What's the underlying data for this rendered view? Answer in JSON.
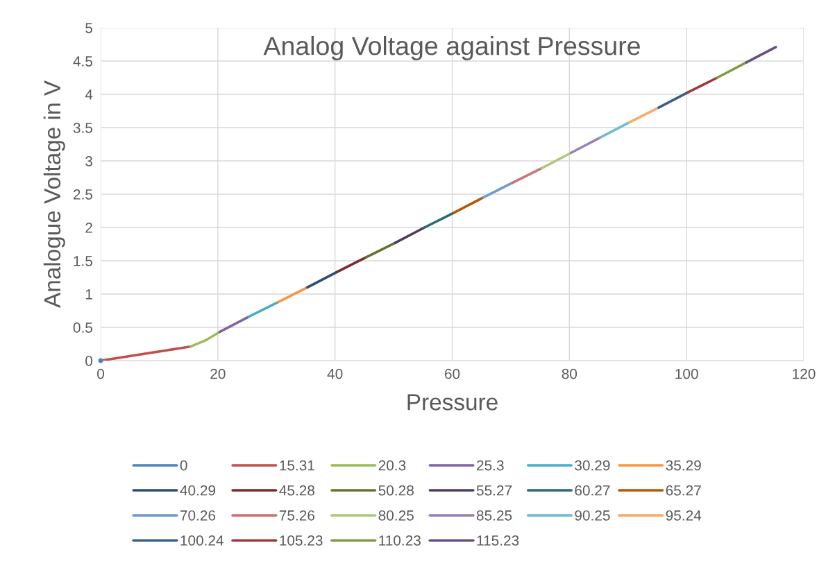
{
  "chart_data": {
    "type": "line",
    "title": "Analog Voltage against Pressure",
    "xlabel": "Pressure",
    "ylabel": "Analogue Voltage in V",
    "xlim": [
      0,
      120
    ],
    "xticks": [
      0,
      20,
      40,
      60,
      80,
      100,
      120
    ],
    "ylim": [
      0,
      5
    ],
    "yticks": [
      0,
      0.5,
      1,
      1.5,
      2,
      2.5,
      3,
      3.5,
      4,
      4.5,
      5
    ],
    "grid": true,
    "legend": "bottom",
    "marker": "none",
    "line_style": "solid",
    "series": [
      {
        "name": "0",
        "color": "#4f81bd",
        "x": [
          0
        ],
        "values": [
          0
        ]
      },
      {
        "name": "15.31",
        "color": "#c0504d",
        "x": [
          0,
          15.31
        ],
        "values": [
          0,
          0.21
        ]
      },
      {
        "name": "20.3",
        "color": "#9bbb59",
        "x": [
          15.31,
          17.8,
          20.3
        ],
        "values": [
          0.21,
          0.3,
          0.43
        ]
      },
      {
        "name": "25.3",
        "color": "#8064a2",
        "x": [
          20.3,
          25.3
        ],
        "values": [
          0.43,
          0.66
        ]
      },
      {
        "name": "30.29",
        "color": "#4bacc6",
        "x": [
          25.3,
          30.29
        ],
        "values": [
          0.66,
          0.88
        ]
      },
      {
        "name": "35.29",
        "color": "#f79646",
        "x": [
          30.29,
          35.29
        ],
        "values": [
          0.88,
          1.1
        ]
      },
      {
        "name": "40.29",
        "color": "#2c4d75",
        "x": [
          35.29,
          40.29
        ],
        "values": [
          1.1,
          1.33
        ]
      },
      {
        "name": "45.28",
        "color": "#772c2a",
        "x": [
          40.29,
          45.28
        ],
        "values": [
          1.33,
          1.55
        ]
      },
      {
        "name": "50.28",
        "color": "#5f7530",
        "x": [
          45.28,
          50.28
        ],
        "values": [
          1.55,
          1.77
        ]
      },
      {
        "name": "55.27",
        "color": "#4d3b62",
        "x": [
          50.28,
          55.27
        ],
        "values": [
          1.77,
          2.0
        ]
      },
      {
        "name": "60.27",
        "color": "#276a7c",
        "x": [
          55.27,
          60.27
        ],
        "values": [
          2.0,
          2.22
        ]
      },
      {
        "name": "65.27",
        "color": "#b65708",
        "x": [
          60.27,
          65.27
        ],
        "values": [
          2.22,
          2.45
        ]
      },
      {
        "name": "70.26",
        "color": "#729aca",
        "x": [
          65.27,
          70.26
        ],
        "values": [
          2.45,
          2.67
        ]
      },
      {
        "name": "75.26",
        "color": "#cd7371",
        "x": [
          70.26,
          75.26
        ],
        "values": [
          2.67,
          2.89
        ]
      },
      {
        "name": "80.25",
        "color": "#afc97a",
        "x": [
          75.26,
          80.25
        ],
        "values": [
          2.89,
          3.12
        ]
      },
      {
        "name": "85.25",
        "color": "#9983b5",
        "x": [
          80.25,
          85.25
        ],
        "values": [
          3.12,
          3.35
        ]
      },
      {
        "name": "90.25",
        "color": "#6fbdd1",
        "x": [
          85.25,
          90.25
        ],
        "values": [
          3.35,
          3.58
        ]
      },
      {
        "name": "95.24",
        "color": "#f9ab6b",
        "x": [
          90.25,
          95.24
        ],
        "values": [
          3.58,
          3.8
        ]
      },
      {
        "name": "100.24",
        "color": "#3a5f8b",
        "x": [
          95.24,
          100.24
        ],
        "values": [
          3.8,
          4.03
        ]
      },
      {
        "name": "105.23",
        "color": "#9e3a38",
        "x": [
          100.24,
          105.23
        ],
        "values": [
          4.03,
          4.25
        ]
      },
      {
        "name": "110.23",
        "color": "#7f9a41",
        "x": [
          105.23,
          110.23
        ],
        "values": [
          4.25,
          4.48
        ]
      },
      {
        "name": "115.23",
        "color": "#664f82",
        "x": [
          110.23,
          115.23
        ],
        "values": [
          4.48,
          4.71
        ]
      }
    ]
  }
}
